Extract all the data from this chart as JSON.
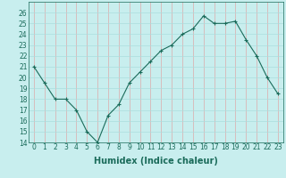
{
  "x": [
    0,
    1,
    2,
    3,
    4,
    5,
    6,
    7,
    8,
    9,
    10,
    11,
    12,
    13,
    14,
    15,
    16,
    17,
    18,
    19,
    20,
    21,
    22,
    23
  ],
  "y": [
    21,
    19.5,
    18,
    18,
    17,
    15,
    14,
    16.5,
    17.5,
    19.5,
    20.5,
    21.5,
    22.5,
    23,
    24,
    24.5,
    25.7,
    25,
    25,
    25.2,
    23.5,
    22,
    20,
    18.5
  ],
  "line_color": "#1a6b5a",
  "marker": "+",
  "marker_size": 3,
  "bg_color": "#c8eeee",
  "grid_color": "#aadddd",
  "xlabel": "Humidex (Indice chaleur)",
  "ylim": [
    14,
    27
  ],
  "xlim": [
    -0.5,
    23.5
  ],
  "yticks": [
    14,
    15,
    16,
    17,
    18,
    19,
    20,
    21,
    22,
    23,
    24,
    25,
    26
  ],
  "xticks": [
    0,
    1,
    2,
    3,
    4,
    5,
    6,
    7,
    8,
    9,
    10,
    11,
    12,
    13,
    14,
    15,
    16,
    17,
    18,
    19,
    20,
    21,
    22,
    23
  ],
  "xlabel_fontsize": 7,
  "tick_fontsize": 5.5
}
